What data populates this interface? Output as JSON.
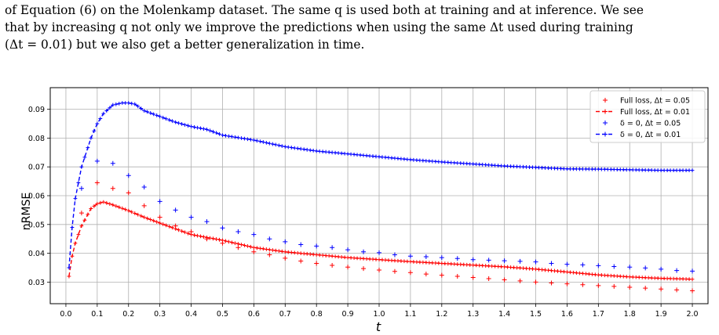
{
  "caption_lines": [
    "of Equation (6) on the Molenkamp dataset. The same q is used both at training and at inference. We see",
    "that by increasing q not only we improve the predictions when using the same Δt used during training",
    "(Δt = 0.01) but we also get a better generalization in time."
  ],
  "colors": {
    "red": "#ff0000",
    "blue": "#0000ff",
    "grid": "#b0b0b0",
    "axis": "#000000"
  },
  "chart_data": {
    "type": "line",
    "xlabel": "t",
    "ylabel": "nRMSE",
    "xlim": [
      -0.05,
      2.05
    ],
    "ylim": [
      0.0225,
      0.0975
    ],
    "grid": true,
    "legend_position": "top-right",
    "x_ticks": [
      "0.0",
      "0.1",
      "0.2",
      "0.3",
      "0.4",
      "0.5",
      "0.6",
      "0.7",
      "0.8",
      "0.9",
      "1.0",
      "1.1",
      "1.2",
      "1.3",
      "1.4",
      "1.5",
      "1.6",
      "1.7",
      "1.8",
      "1.9",
      "2.0"
    ],
    "y_ticks": [
      "0.03",
      "0.04",
      "0.05",
      "0.06",
      "0.07",
      "0.08",
      "0.09"
    ],
    "series": [
      {
        "name": "Full loss, Δt = 0.05",
        "color": "#ff0000",
        "style": "markers",
        "x": [
          0.05,
          0.1,
          0.15,
          0.2,
          0.25,
          0.3,
          0.35,
          0.4,
          0.45,
          0.5,
          0.55,
          0.6,
          0.65,
          0.7,
          0.75,
          0.8,
          0.85,
          0.9,
          0.95,
          1.0,
          1.05,
          1.1,
          1.15,
          1.2,
          1.25,
          1.3,
          1.35,
          1.4,
          1.45,
          1.5,
          1.55,
          1.6,
          1.65,
          1.7,
          1.75,
          1.8,
          1.85,
          1.9,
          1.95,
          2.0
        ],
        "y": [
          0.054,
          0.0645,
          0.0625,
          0.061,
          0.0565,
          0.0525,
          0.0495,
          0.0475,
          0.045,
          0.0435,
          0.042,
          0.0405,
          0.0395,
          0.0383,
          0.0373,
          0.0365,
          0.0358,
          0.0352,
          0.0347,
          0.0342,
          0.0337,
          0.0333,
          0.0328,
          0.0324,
          0.032,
          0.0316,
          0.0312,
          0.0308,
          0.0304,
          0.03,
          0.0297,
          0.0294,
          0.0291,
          0.0288,
          0.0285,
          0.0282,
          0.0279,
          0.0276,
          0.0273,
          0.027
        ]
      },
      {
        "name": "Full loss, Δt = 0.01",
        "color": "#ff0000",
        "style": "dashed-markers",
        "x": [
          0.01,
          0.02,
          0.03,
          0.05,
          0.08,
          0.1,
          0.12,
          0.15,
          0.2,
          0.25,
          0.3,
          0.35,
          0.4,
          0.45,
          0.5,
          0.6,
          0.7,
          0.8,
          0.9,
          1.0,
          1.1,
          1.2,
          1.3,
          1.4,
          1.5,
          1.6,
          1.7,
          1.8,
          1.9,
          2.0
        ],
        "y": [
          0.032,
          0.039,
          0.0435,
          0.0495,
          0.0555,
          0.0572,
          0.0578,
          0.0568,
          0.0548,
          0.0525,
          0.0505,
          0.0485,
          0.0465,
          0.0455,
          0.0445,
          0.042,
          0.0405,
          0.0395,
          0.0385,
          0.0378,
          0.0371,
          0.0365,
          0.0359,
          0.0353,
          0.0345,
          0.0335,
          0.0325,
          0.0318,
          0.0313,
          0.031
        ]
      },
      {
        "name": "δ = 0, Δt = 0.05",
        "color": "#0000ff",
        "style": "markers",
        "x": [
          0.05,
          0.1,
          0.15,
          0.2,
          0.25,
          0.3,
          0.35,
          0.4,
          0.45,
          0.5,
          0.55,
          0.6,
          0.65,
          0.7,
          0.75,
          0.8,
          0.85,
          0.9,
          0.95,
          1.0,
          1.05,
          1.1,
          1.15,
          1.2,
          1.25,
          1.3,
          1.35,
          1.4,
          1.45,
          1.5,
          1.55,
          1.6,
          1.65,
          1.7,
          1.75,
          1.8,
          1.85,
          1.9,
          1.95,
          2.0
        ],
        "y": [
          0.0625,
          0.072,
          0.0712,
          0.067,
          0.063,
          0.058,
          0.055,
          0.0525,
          0.051,
          0.0488,
          0.0475,
          0.0465,
          0.045,
          0.044,
          0.043,
          0.0425,
          0.042,
          0.0412,
          0.0405,
          0.0402,
          0.0395,
          0.039,
          0.0388,
          0.0385,
          0.0382,
          0.0378,
          0.0376,
          0.0374,
          0.0372,
          0.037,
          0.0365,
          0.0362,
          0.036,
          0.0357,
          0.0354,
          0.0352,
          0.0349,
          0.0345,
          0.034,
          0.0338
        ]
      },
      {
        "name": "δ = 0, Δt = 0.01",
        "color": "#0000ff",
        "style": "dashed-markers",
        "x": [
          0.01,
          0.02,
          0.03,
          0.05,
          0.08,
          0.1,
          0.12,
          0.15,
          0.18,
          0.2,
          0.22,
          0.25,
          0.3,
          0.35,
          0.4,
          0.45,
          0.5,
          0.6,
          0.7,
          0.8,
          0.9,
          1.0,
          1.1,
          1.2,
          1.3,
          1.4,
          1.5,
          1.6,
          1.7,
          1.8,
          1.9,
          2.0
        ],
        "y": [
          0.035,
          0.049,
          0.059,
          0.07,
          0.08,
          0.085,
          0.0885,
          0.0915,
          0.0922,
          0.0922,
          0.0918,
          0.0895,
          0.0875,
          0.0855,
          0.084,
          0.083,
          0.081,
          0.0793,
          0.077,
          0.0755,
          0.0745,
          0.0735,
          0.0725,
          0.0717,
          0.071,
          0.0703,
          0.0698,
          0.0693,
          0.0692,
          0.069,
          0.0688,
          0.0688
        ]
      }
    ]
  }
}
